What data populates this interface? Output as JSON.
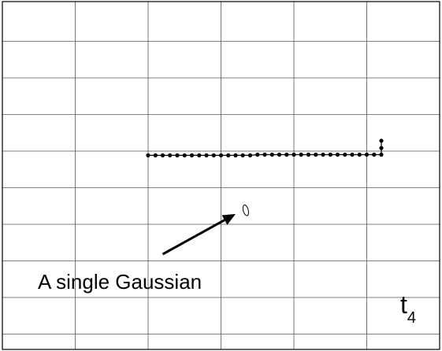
{
  "chart_data": {
    "type": "scatter",
    "title": "",
    "xlabel": "t",
    "xlabel_subscript": "4",
    "ylabel": "",
    "grid": true,
    "xlim": [
      0,
      6
    ],
    "ylim": [
      0,
      9.5
    ],
    "x_grid_divisions": 6,
    "y_grid_divisions": 9,
    "series": [
      {
        "marker": "dot",
        "color": "#000000",
        "points": [
          [
            2.0,
            5.3
          ],
          [
            2.1,
            5.3
          ],
          [
            2.2,
            5.3
          ],
          [
            2.3,
            5.3
          ],
          [
            2.4,
            5.3
          ],
          [
            2.5,
            5.3
          ],
          [
            2.6,
            5.3
          ],
          [
            2.7,
            5.3
          ],
          [
            2.8,
            5.3
          ],
          [
            2.9,
            5.3
          ],
          [
            3.0,
            5.3
          ],
          [
            3.1,
            5.3
          ],
          [
            3.2,
            5.3
          ],
          [
            3.3,
            5.3
          ],
          [
            3.4,
            5.3
          ],
          [
            3.5,
            5.32
          ],
          [
            3.6,
            5.32
          ],
          [
            3.7,
            5.32
          ],
          [
            3.8,
            5.32
          ],
          [
            3.9,
            5.32
          ],
          [
            4.0,
            5.32
          ],
          [
            4.1,
            5.32
          ],
          [
            4.2,
            5.32
          ],
          [
            4.3,
            5.32
          ],
          [
            4.4,
            5.32
          ],
          [
            4.5,
            5.32
          ],
          [
            4.6,
            5.32
          ],
          [
            4.7,
            5.32
          ],
          [
            4.8,
            5.32
          ],
          [
            4.9,
            5.32
          ],
          [
            5.0,
            5.32
          ],
          [
            5.1,
            5.32
          ],
          [
            5.2,
            5.32
          ],
          [
            5.2,
            5.5
          ],
          [
            5.2,
            5.7
          ]
        ]
      }
    ],
    "marker_blob": {
      "x": 3.34,
      "y": 3.8,
      "rx": 0.035,
      "ry": 0.15
    },
    "annotation": {
      "text": "A single Gaussian",
      "points_to": {
        "x": 3.2,
        "y": 3.7
      },
      "from": {
        "x": 2.2,
        "y": 2.6
      }
    }
  }
}
